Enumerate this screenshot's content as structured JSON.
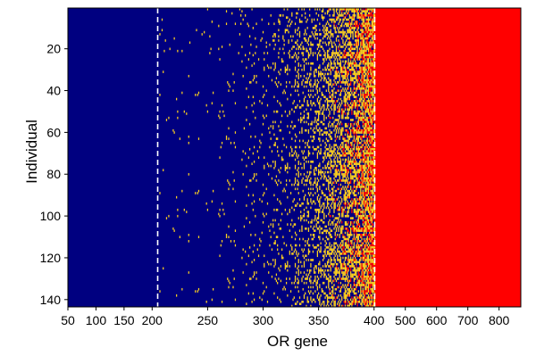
{
  "chart_data": {
    "type": "heatmap",
    "title": "",
    "xlabel": "OR gene",
    "ylabel": "Individual",
    "y_ticks": [
      20,
      40,
      60,
      80,
      100,
      120,
      140
    ],
    "y_range": [
      1,
      143
    ],
    "x_tick_labels": [
      "50",
      "100",
      "150",
      "200",
      "250",
      "300",
      "350",
      "400",
      "500",
      "600",
      "700",
      "800"
    ],
    "x_tick_positions": [
      50,
      100,
      150,
      200,
      250,
      300,
      350,
      400,
      500,
      600,
      700,
      800
    ],
    "x_range": [
      1,
      850
    ],
    "axis_breaks_note": "piecewise-scaled gene axis",
    "x_axis_segments": [
      {
        "from": 50,
        "to": 200,
        "frac_start": 0.0,
        "frac_end": 0.186
      },
      {
        "from": 200,
        "to": 400,
        "frac_start": 0.186,
        "frac_end": 0.676
      },
      {
        "from": 400,
        "to": 800,
        "frac_start": 0.676,
        "frac_end": 0.952
      }
    ],
    "x_axis_extent_frac": {
      "min_gene": 1,
      "frac_at_min": -0.01,
      "max_gene": 850,
      "frac_at_max": 1.0
    },
    "dashed_lines_x": [
      205,
      402
    ],
    "regions": [
      {
        "from_gene": 1,
        "to_gene": 205,
        "state": "absent",
        "color": "#000080"
      },
      {
        "from_gene": 205,
        "to_gene": 402,
        "state": "mixed",
        "color": "#000080"
      },
      {
        "from_gene": 402,
        "to_gene": 850,
        "state": "present",
        "color": "#ff0000"
      }
    ],
    "state_colors": {
      "absent": "#000080",
      "partial": "#ffd21e",
      "present": "#ff0000"
    },
    "pattern_note": "yellow/red cells become increasingly dense from gene ~300 toward gene 402; a few sparse yellow cells between 205 and 300; cells are drawn procedurally",
    "grid": false,
    "legend": "none"
  }
}
